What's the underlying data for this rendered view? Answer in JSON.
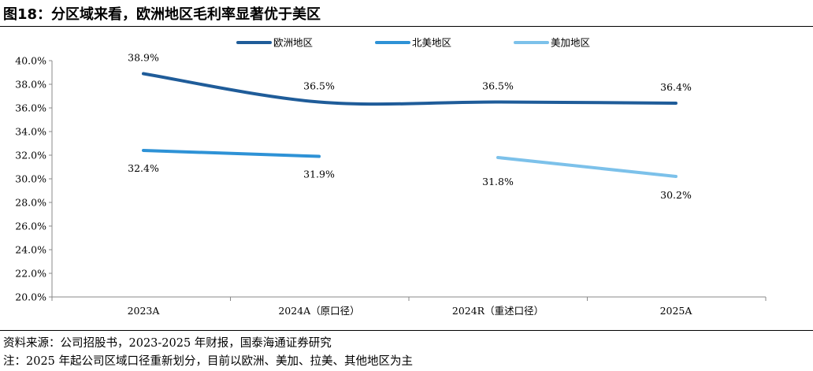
{
  "title": "图18：分区域来看，欧洲地区毛利率显著优于美区",
  "footnotes": [
    "资料来源：公司招股书，2023-2025 年财报，国泰海通证券研究",
    "注：2025 年起公司区域口径重新划分，目前以欧洲、美加、拉美、其他地区为主"
  ],
  "chart_data": {
    "type": "line",
    "categories": [
      "2023A",
      "2024A（原口径）",
      "2024R（重述口径）",
      "2025A"
    ],
    "ylim": [
      20,
      40
    ],
    "yticks": [
      "20.0%",
      "22.0%",
      "24.0%",
      "26.0%",
      "28.0%",
      "30.0%",
      "32.0%",
      "34.0%",
      "36.0%",
      "38.0%",
      "40.0%"
    ],
    "grid": false,
    "legend": "top-center",
    "series": [
      {
        "name": "欧洲地区",
        "color": "#1F5C99",
        "values": [
          38.9,
          36.5,
          36.5,
          36.4
        ],
        "labels": [
          "38.9%",
          "36.5%",
          "36.5%",
          "36.4%"
        ],
        "smooth": true
      },
      {
        "name": "北美地区",
        "color": "#2E92D6",
        "values": [
          32.4,
          31.9,
          null,
          null
        ],
        "labels": [
          "32.4%",
          "31.9%",
          null,
          null
        ],
        "smooth": false
      },
      {
        "name": "美加地区",
        "color": "#7CC1EA",
        "values": [
          null,
          null,
          31.8,
          30.2
        ],
        "labels": [
          null,
          null,
          "31.8%",
          "30.2%"
        ],
        "smooth": false
      }
    ]
  }
}
